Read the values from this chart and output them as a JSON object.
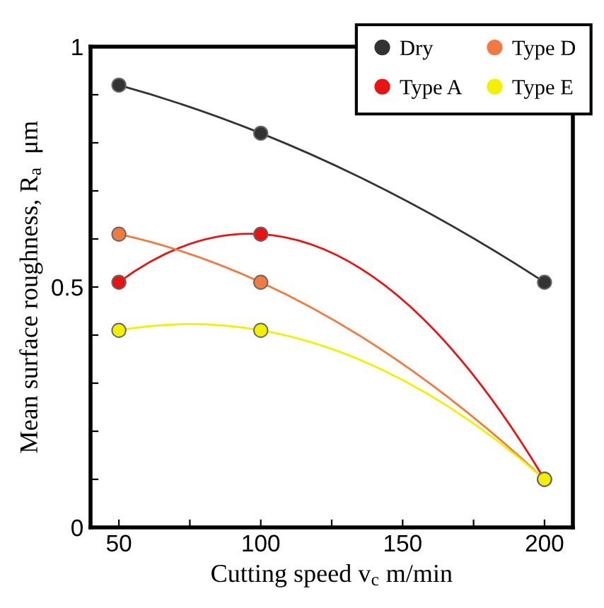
{
  "chart_data": {
    "type": "line",
    "xlabel": "Cutting speed v$_{c}$ m/min",
    "ylabel": "Mean surface roughness, R$_{a}$  μm",
    "x": [
      50,
      100,
      200
    ],
    "series": [
      {
        "name": "Dry",
        "color": "#333333",
        "values": [
          0.92,
          0.82,
          0.51
        ]
      },
      {
        "name": "Type A",
        "color": "#e81414",
        "values": [
          0.51,
          0.61,
          0.1
        ]
      },
      {
        "name": "Type D",
        "color": "#f07a42",
        "values": [
          0.61,
          0.51,
          0.1
        ]
      },
      {
        "name": "Type E",
        "color": "#f2f000",
        "values": [
          0.41,
          0.41,
          0.1
        ]
      }
    ],
    "xlim": [
      40,
      210
    ],
    "xticks": [
      50,
      {
        "value": 75,
        "label": null
      },
      100,
      {
        "value": 125,
        "label": null
      },
      150,
      {
        "value": 175,
        "label": null
      },
      200
    ],
    "ylim": [
      0,
      1
    ],
    "yticks": [
      0,
      {
        "value": 0.1,
        "label": null
      },
      {
        "value": 0.2,
        "label": null
      },
      {
        "value": 0.3,
        "label": null
      },
      {
        "value": 0.4,
        "label": null
      },
      0.5,
      {
        "value": 0.6,
        "label": null
      },
      {
        "value": 0.7,
        "label": null
      },
      {
        "value": 0.8,
        "label": null
      },
      {
        "value": 0.9,
        "label": null
      },
      1
    ],
    "marker": "circle",
    "line_style": "solid",
    "grid": false,
    "legend": "top right"
  }
}
